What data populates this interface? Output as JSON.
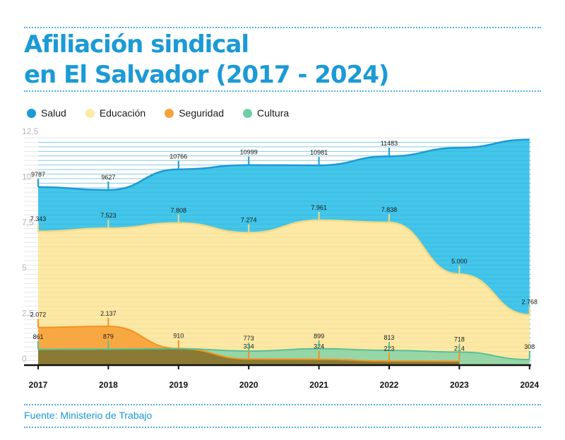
{
  "title": {
    "line1": "Afiliación sindical",
    "line2": "en El Salvador (2017 - 2024)"
  },
  "source": "Fuente: Ministerio de Trabajo",
  "colors": {
    "accent": "#1b9ad6",
    "salud": "#2aa3d6",
    "salud_fill": "#44c6ea",
    "educacion": "#fde9a6",
    "seguridad": "#f7a23b",
    "cultura": "#6fcfa7"
  },
  "chart_data": {
    "type": "area",
    "x": [
      "2017",
      "2018",
      "2019",
      "2020",
      "2021",
      "2022",
      "2023",
      "2024"
    ],
    "y_ticks": [
      "0",
      "2,5",
      "5",
      "7,5",
      "10",
      "12,5"
    ],
    "ylim": [
      0,
      12.5
    ],
    "grid": true,
    "legend_position": "top-left",
    "series": [
      {
        "name": "Salud",
        "color": "#44c6ea",
        "values": [
          9.787,
          9.627,
          10.766,
          10.999,
          10.981,
          11.483,
          null,
          null
        ],
        "trend_values": [
          9.787,
          9.627,
          10.766,
          10.999,
          10.981,
          11.483,
          11.95,
          12.4
        ],
        "labels": [
          "9787",
          "9627",
          "10766",
          "10999",
          "10981",
          "11483",
          "",
          ""
        ]
      },
      {
        "name": "Educación",
        "color": "#fde9a6",
        "values": [
          7.343,
          7.523,
          7.808,
          7.274,
          7.961,
          7.838,
          5.0,
          2.768
        ],
        "labels": [
          "7.343",
          "7.523",
          "7.808",
          "7.274",
          "7.961",
          "7.838",
          "5.000",
          "2.768"
        ]
      },
      {
        "name": "Seguridad",
        "color": "#f7a23b",
        "values": [
          2.072,
          2.137,
          0.91,
          0.334,
          0.324,
          0.223,
          0.214,
          null
        ],
        "labels": [
          "2.072",
          "2.137",
          "910",
          "334",
          "324",
          "223",
          "214",
          ""
        ]
      },
      {
        "name": "Cultura",
        "color": "#6fcfa7",
        "values": [
          0.861,
          0.879,
          0.91,
          0.773,
          0.899,
          0.813,
          0.718,
          0.308
        ],
        "labels": [
          "861",
          "879",
          "",
          "773",
          "899",
          "813",
          "718",
          "308"
        ]
      }
    ]
  }
}
